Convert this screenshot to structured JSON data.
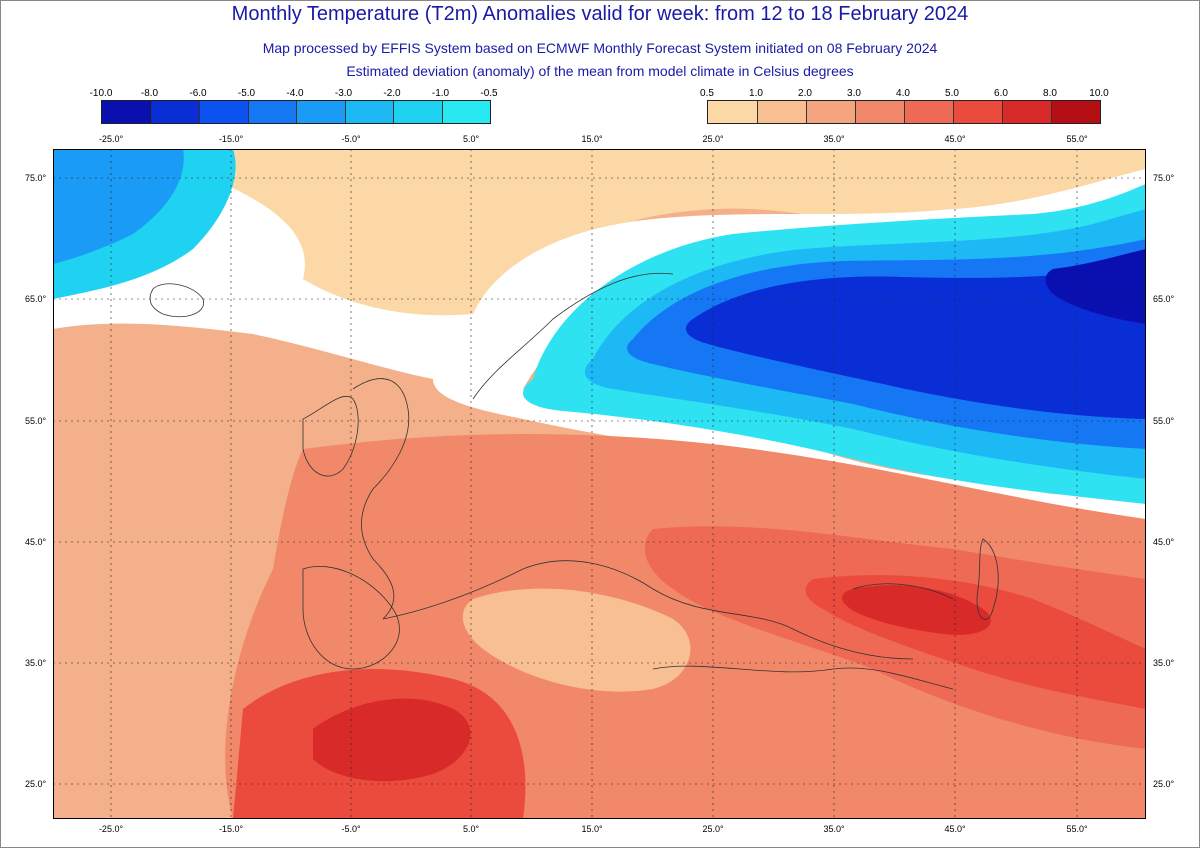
{
  "title": "Monthly Temperature (T2m) Anomalies valid for week: from 12 to 18 February 2024",
  "subtitle": "Map processed by EFFIS System based on ECMWF Monthly Forecast System initiated on 08 February 2024",
  "subtitle2": "Estimated deviation (anomaly) of the mean from model climate in Celsius degrees",
  "legend_cold": {
    "labels": [
      "-10.0",
      "-8.0",
      "-6.0",
      "-5.0",
      "-4.0",
      "-3.0",
      "-2.0",
      "-1.0",
      "-0.5"
    ],
    "colors": [
      "#0a0fb0",
      "#0a2ed6",
      "#0b52f0",
      "#1677f5",
      "#1a9bf5",
      "#1cb9f5",
      "#1fd2f2",
      "#28e8f2"
    ]
  },
  "legend_warm": {
    "labels": [
      "0.5",
      "1.0",
      "2.0",
      "3.0",
      "4.0",
      "5.0",
      "6.0",
      "8.0",
      "10.0"
    ],
    "colors": [
      "#fbd8a6",
      "#f8c092",
      "#f4a47e",
      "#f2886a",
      "#ef6a55",
      "#ea4b3c",
      "#d92a2a",
      "#b40f14"
    ]
  },
  "colors": {
    "title": "#1a1aa6",
    "background_ocean": "#f3b48c",
    "neutral": "#ffffff"
  },
  "axis": {
    "lon_top": [
      "-25.0°",
      "-15.0°",
      "-5.0°",
      "5.0°",
      "15.0°",
      "25.0°",
      "35.0°",
      "45.0°",
      "55.0°"
    ],
    "lon_bottom": [
      "-25.0°",
      "-15.0°",
      "-5.0°",
      "5.0°",
      "15.0°",
      "25.0°",
      "35.0°",
      "45.0°",
      "55.0°"
    ],
    "lat_left": [
      "75.0°",
      "65.0°",
      "55.0°",
      "45.0°",
      "35.0°",
      "25.0°"
    ],
    "lat_right": [
      "75.0°",
      "65.0°",
      "55.0°",
      "45.0°",
      "35.0°",
      "25.0°"
    ]
  }
}
